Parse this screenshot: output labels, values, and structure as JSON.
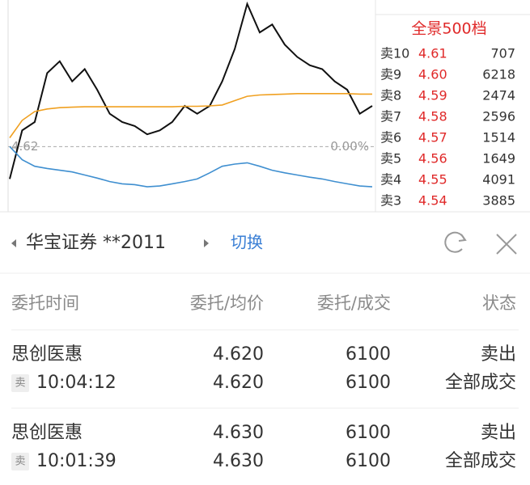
{
  "chart_data": {
    "type": "line",
    "ylim": [
      4.471,
      4.955
    ],
    "yticks": [
      {
        "value": 4.62,
        "label": "4.62"
      }
    ],
    "y2lim": [
      -3.225,
      7.251
    ],
    "y2ticks": [
      {
        "value": 0,
        "label": "0.00%"
      }
    ],
    "series": [
      {
        "color": "#111111",
        "values": [
          4.546,
          4.657,
          4.676,
          4.788,
          4.815,
          4.769,
          4.797,
          4.75,
          4.695,
          4.676,
          4.667,
          4.648,
          4.657,
          4.676,
          4.713,
          4.695,
          4.713,
          4.769,
          4.843,
          4.946,
          4.881,
          4.899,
          4.853,
          4.825,
          4.806,
          4.797,
          4.769,
          4.75,
          4.695,
          4.713
        ]
      },
      {
        "color": "#f0a020",
        "values": [
          4.64,
          4.68,
          4.7,
          4.706,
          4.709,
          4.71,
          4.711,
          4.711,
          4.711,
          4.711,
          4.711,
          4.711,
          4.711,
          4.711,
          4.712,
          4.712,
          4.713,
          4.715,
          4.725,
          4.735,
          4.738,
          4.739,
          4.74,
          4.741,
          4.741,
          4.741,
          4.741,
          4.741,
          4.74,
          4.74
        ]
      },
      {
        "color": "#3f8fd0",
        "values": [
          4.62,
          4.59,
          4.575,
          4.57,
          4.566,
          4.562,
          4.555,
          4.548,
          4.54,
          4.535,
          4.533,
          4.528,
          4.53,
          4.535,
          4.54,
          4.546,
          4.56,
          4.575,
          4.58,
          4.583,
          4.575,
          4.566,
          4.56,
          4.555,
          4.55,
          4.546,
          4.54,
          4.535,
          4.53,
          4.528
        ]
      }
    ]
  },
  "order_book": {
    "title": "全景500档",
    "rows": [
      {
        "label": "卖10",
        "price": "4.61",
        "volume": "707"
      },
      {
        "label": "卖9",
        "price": "4.60",
        "volume": "6218"
      },
      {
        "label": "卖8",
        "price": "4.59",
        "volume": "2474"
      },
      {
        "label": "卖7",
        "price": "4.58",
        "volume": "2596"
      },
      {
        "label": "卖6",
        "price": "4.57",
        "volume": "1514"
      },
      {
        "label": "卖5",
        "price": "4.56",
        "volume": "1649"
      },
      {
        "label": "卖4",
        "price": "4.55",
        "volume": "4091"
      },
      {
        "label": "卖3",
        "price": "4.54",
        "volume": "3885"
      }
    ]
  },
  "account": {
    "broker": "华宝证券 **2011",
    "switch": "切换"
  },
  "orders": {
    "columns": [
      "委托时间",
      "委托/均价",
      "委托/成交",
      "状态"
    ],
    "rows": [
      {
        "name": "思创医惠",
        "side": "卖",
        "time": "10:04:12",
        "price": "4.620",
        "avg_price": "4.620",
        "quantity": "6100",
        "filled": "6100",
        "status": "卖出",
        "fill_status": "全部成交"
      },
      {
        "name": "思创医惠",
        "side": "卖",
        "time": "10:01:39",
        "price": "4.630",
        "avg_price": "4.630",
        "quantity": "6100",
        "filled": "6100",
        "status": "卖出",
        "fill_status": "全部成交"
      }
    ]
  }
}
